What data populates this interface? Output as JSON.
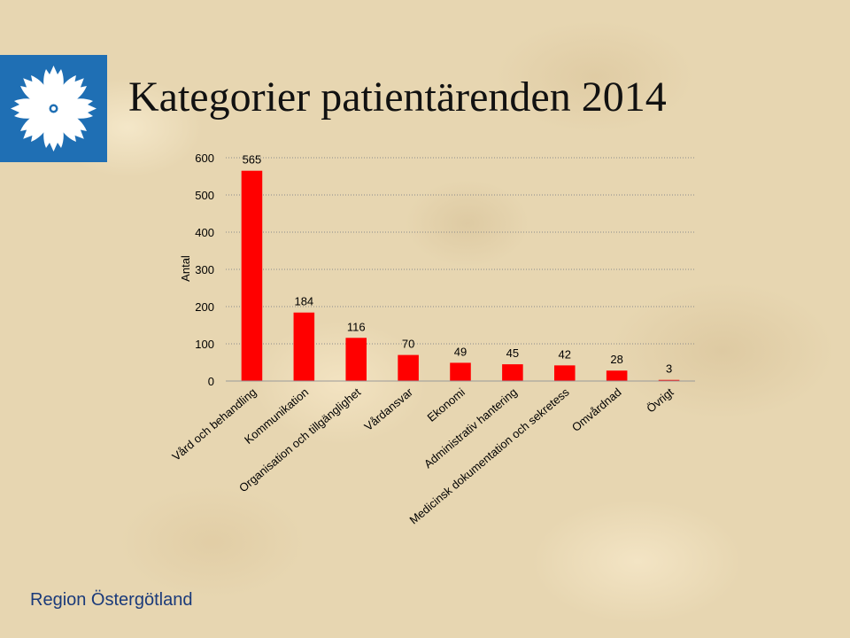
{
  "header": {
    "title": "Kategorier patientärenden 2014"
  },
  "logo": {
    "icon": "cornflower-logo-icon",
    "color": "#1f6fb4"
  },
  "footer": {
    "org": "Region Östergötland"
  },
  "chart_data": {
    "type": "bar",
    "title": "Kategorier patientärenden 2014",
    "xlabel": "",
    "ylabel": "Antal",
    "ylim": [
      0,
      600
    ],
    "yticks": [
      0,
      100,
      200,
      300,
      400,
      500,
      600
    ],
    "grid": true,
    "bar_color": "#ff0000",
    "categories": [
      "Vård och behandling",
      "Kommunikation",
      "Organisation och tillgänglighet",
      "Vårdansvar",
      "Ekonomi",
      "Administrativ hantering",
      "Medicinsk dokumentation och sekretess",
      "Omvårdnad",
      "Övrigt"
    ],
    "values": [
      565,
      184,
      116,
      70,
      49,
      45,
      42,
      28,
      3
    ]
  }
}
